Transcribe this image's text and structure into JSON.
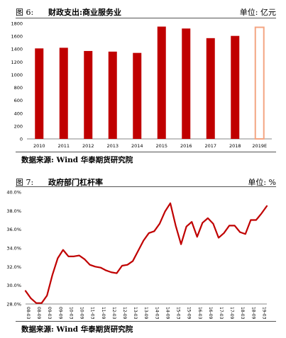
{
  "chart_data": [
    {
      "type": "bar",
      "figure_label": "图 6:",
      "title": "财政支出:商业服务业",
      "unit": "单位: 亿元",
      "source": "数据来源: Wind  华泰期货研究院",
      "categories": [
        "2010",
        "2011",
        "2012",
        "2013",
        "2014",
        "2015",
        "2016",
        "2017",
        "2018",
        "2019E"
      ],
      "values": [
        1410,
        1420,
        1370,
        1360,
        1340,
        1750,
        1720,
        1570,
        1605,
        1750
      ],
      "estimate_flags": [
        false,
        false,
        false,
        false,
        false,
        false,
        false,
        false,
        false,
        true
      ],
      "ylim": [
        0,
        1800
      ],
      "yticks": [
        0,
        200,
        400,
        600,
        800,
        1000,
        1200,
        1400,
        1600,
        1800
      ],
      "bar_color": "#c00000",
      "estimate_color": "#f4a582",
      "grid": false
    },
    {
      "type": "line",
      "figure_label": "图 7:",
      "title": "政府部门杠杆率",
      "unit": "单位: %",
      "source": "数据来源: Wind  华泰期货研究院",
      "x": [
        "2008-03",
        "2008-06",
        "2008-09",
        "2008-12",
        "2009-03",
        "2009-06",
        "2009-09",
        "2009-12",
        "2010-03",
        "2010-06",
        "2010-09",
        "2010-12",
        "2011-03",
        "2011-06",
        "2011-09",
        "2011-12",
        "2012-03",
        "2012-06",
        "2012-09",
        "2012-12",
        "2013-03",
        "2013-06",
        "2013-09",
        "2013-12",
        "2014-03",
        "2014-06",
        "2014-09",
        "2014-12",
        "2015-03",
        "2015-06",
        "2015-09",
        "2015-12",
        "2016-03",
        "2016-06",
        "2016-09",
        "2016-12",
        "2017-03",
        "2017-06",
        "2017-09",
        "2017-12",
        "2018-03",
        "2018-06",
        "2018-09",
        "2018-12",
        "2019-03",
        "2019-06"
      ],
      "xtick_labels": [
        "08-03",
        "08-09",
        "09-03",
        "09-09",
        "10-03",
        "10-09",
        "11-03",
        "11-09",
        "12-03",
        "12-09",
        "13-03",
        "13-09",
        "14-03",
        "14-09",
        "15-03",
        "15-09",
        "16-03",
        "16-09",
        "17-03",
        "17-09",
        "18-03",
        "18-09",
        "19-03"
      ],
      "values": [
        29.4,
        28.6,
        28.1,
        28.1,
        28.9,
        31.1,
        32.9,
        33.8,
        33.1,
        33.1,
        33.2,
        32.8,
        32.2,
        32.0,
        31.9,
        31.6,
        31.4,
        31.3,
        32.1,
        32.2,
        32.6,
        33.7,
        34.8,
        35.6,
        35.8,
        36.6,
        37.9,
        38.8,
        36.4,
        34.4,
        36.3,
        36.8,
        35.2,
        36.7,
        37.2,
        36.6,
        35.1,
        35.6,
        36.4,
        36.4,
        35.7,
        35.5,
        37.0,
        37.0,
        37.7,
        38.5
      ],
      "ylim": [
        28.0,
        40.0
      ],
      "yticks": [
        "28.0%",
        "30.0%",
        "32.0%",
        "34.0%",
        "36.0%",
        "38.0%",
        "40.0%"
      ],
      "line_color": "#c00000",
      "grid": false
    }
  ]
}
